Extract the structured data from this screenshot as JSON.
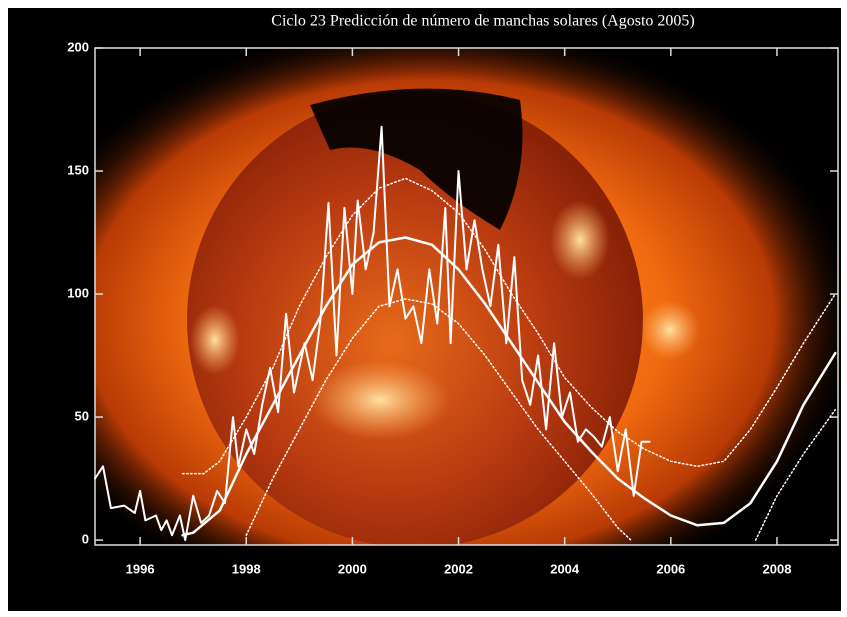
{
  "chart_data": {
    "type": "line",
    "title": "Ciclo 23   Predicción de número de manchas solares (Agosto 2005)",
    "xlim": [
      1995.15,
      2009.15
    ],
    "xticks": [
      1996,
      1998,
      2000,
      2002,
      2004,
      2006,
      2008
    ],
    "ylim": [
      -2,
      200
    ],
    "yticks": [
      0,
      50,
      100,
      150,
      200
    ],
    "series": [
      {
        "color": "#ffffff",
        "style": "solid",
        "width": 2,
        "x": [
          1995.15,
          1995.3,
          1995.45,
          1995.7,
          1995.9,
          1996.0,
          1996.1,
          1996.3,
          1996.4,
          1996.5,
          1996.6,
          1996.75,
          1996.85,
          1997.0,
          1997.15,
          1997.3,
          1997.45,
          1997.6,
          1997.75,
          1997.85,
          1998.0,
          1998.15,
          1998.3,
          1998.45,
          1998.6,
          1998.75,
          1998.9,
          1999.1,
          1999.25,
          1999.4,
          1999.55,
          1999.7,
          1999.85,
          2000.0,
          2000.1,
          2000.25,
          2000.4,
          2000.55,
          2000.7,
          2000.85,
          2001.0,
          2001.15,
          2001.3,
          2001.45,
          2001.6,
          2001.75,
          2001.85,
          2002.0,
          2002.15,
          2002.3,
          2002.45,
          2002.6,
          2002.75,
          2002.9,
          2003.05,
          2003.2,
          2003.35,
          2003.5,
          2003.65,
          2003.8,
          2003.95,
          2004.1,
          2004.25,
          2004.4,
          2004.55,
          2004.7,
          2004.85,
          2005.0,
          2005.15,
          2005.3,
          2005.45,
          2005.6
        ],
        "values": [
          25,
          30,
          13,
          14,
          11,
          20,
          8,
          10,
          4,
          8,
          2,
          10,
          0,
          18,
          7,
          10,
          20,
          15,
          50,
          30,
          45,
          35,
          55,
          70,
          52,
          92,
          60,
          80,
          65,
          90,
          137,
          75,
          135,
          100,
          138,
          110,
          125,
          168,
          95,
          110,
          90,
          95,
          80,
          110,
          88,
          135,
          80,
          150,
          110,
          130,
          110,
          95,
          120,
          80,
          115,
          65,
          55,
          75,
          45,
          80,
          50,
          60,
          40,
          45,
          42,
          38,
          50,
          28,
          45,
          18,
          40,
          40
        ]
      },
      {
        "color": "#ffffff",
        "style": "solid",
        "width": 2.5,
        "x": [
          1996.8,
          1997.0,
          1997.5,
          1998.0,
          1998.5,
          1999.0,
          1999.5,
          2000.0,
          2000.5,
          2001.0,
          2001.5,
          2002.0,
          2002.5,
          2003.0,
          2003.5,
          2004.0,
          2004.5,
          2005.0,
          2005.5,
          2006.0,
          2006.5,
          2007.0,
          2007.5,
          2008.0,
          2008.5,
          2009.1
        ],
        "values": [
          2,
          3,
          12,
          35,
          55,
          75,
          95,
          112,
          121,
          123,
          120,
          110,
          96,
          80,
          64,
          48,
          36,
          25,
          17,
          10,
          6,
          7,
          15,
          32,
          55,
          76
        ]
      },
      {
        "color": "#ffffff",
        "style": "dotted",
        "width": 1.5,
        "x": [
          1996.8,
          1997.2,
          1997.5,
          1998.0,
          1998.5,
          1999.0,
          1999.5,
          2000.0,
          2000.5,
          2001.0,
          2001.5,
          2002.0,
          2002.5,
          2003.0,
          2003.5,
          2004.0,
          2004.5,
          2005.0,
          2005.5,
          2006.0,
          2006.5,
          2007.0,
          2007.5,
          2008.0,
          2008.5,
          2009.1
        ],
        "values": [
          27,
          27,
          32,
          50,
          70,
          95,
          115,
          132,
          143,
          147,
          142,
          133,
          118,
          100,
          84,
          66,
          54,
          44,
          37,
          32,
          30,
          32,
          45,
          62,
          80,
          100
        ]
      },
      {
        "color": "#ffffff",
        "style": "dotted",
        "width": 1.5,
        "x": [
          1998.0,
          1998.5,
          1999.0,
          1999.5,
          2000.0,
          2000.5,
          2001.0,
          2001.5,
          2002.0,
          2002.5,
          2003.0,
          2003.5,
          2004.0,
          2004.5,
          2005.0,
          2005.25,
          2006.5,
          2007.6,
          2008.0,
          2008.5,
          2009.1
        ],
        "values": [
          2,
          25,
          45,
          65,
          82,
          95,
          98,
          96,
          88,
          75,
          60,
          45,
          32,
          19,
          5,
          0,
          null,
          0,
          18,
          35,
          53
        ]
      }
    ]
  }
}
